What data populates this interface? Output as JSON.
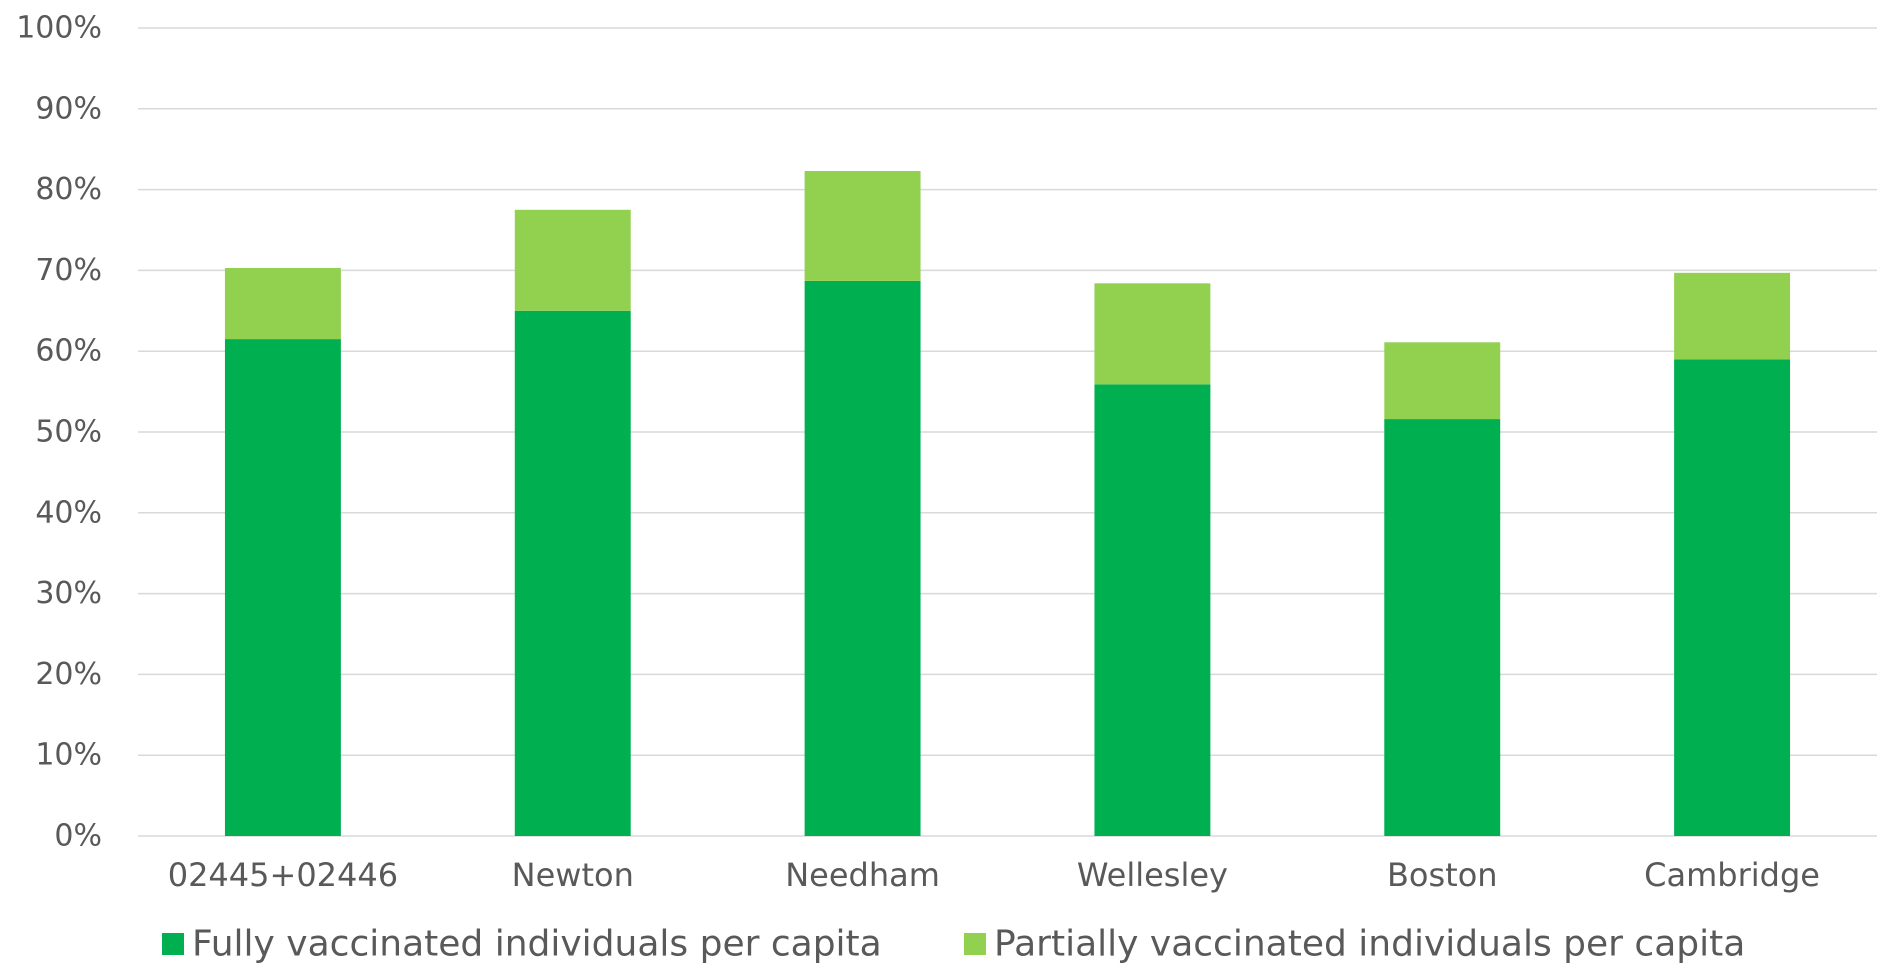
{
  "chart_data": {
    "type": "bar",
    "stacked": true,
    "categories": [
      "02445+02446",
      "Newton",
      "Needham",
      "Wellesley",
      "Boston",
      "Cambridge"
    ],
    "series": [
      {
        "name": "Fully vaccinated individuals per capita",
        "color": "#00b050",
        "values": [
          61.5,
          65.0,
          68.7,
          55.9,
          51.6,
          59.0
        ]
      },
      {
        "name": "Partially vaccinated individuals per capita",
        "color": "#92d050",
        "values": [
          8.8,
          12.5,
          13.6,
          12.5,
          9.5,
          10.7
        ]
      }
    ],
    "ylim": [
      0,
      100
    ],
    "yticks": [
      "0%",
      "10%",
      "20%",
      "30%",
      "40%",
      "50%",
      "60%",
      "70%",
      "80%",
      "90%",
      "100%"
    ],
    "title": "",
    "xlabel": "",
    "ylabel": "",
    "grid": true,
    "legend_position": "bottom"
  }
}
